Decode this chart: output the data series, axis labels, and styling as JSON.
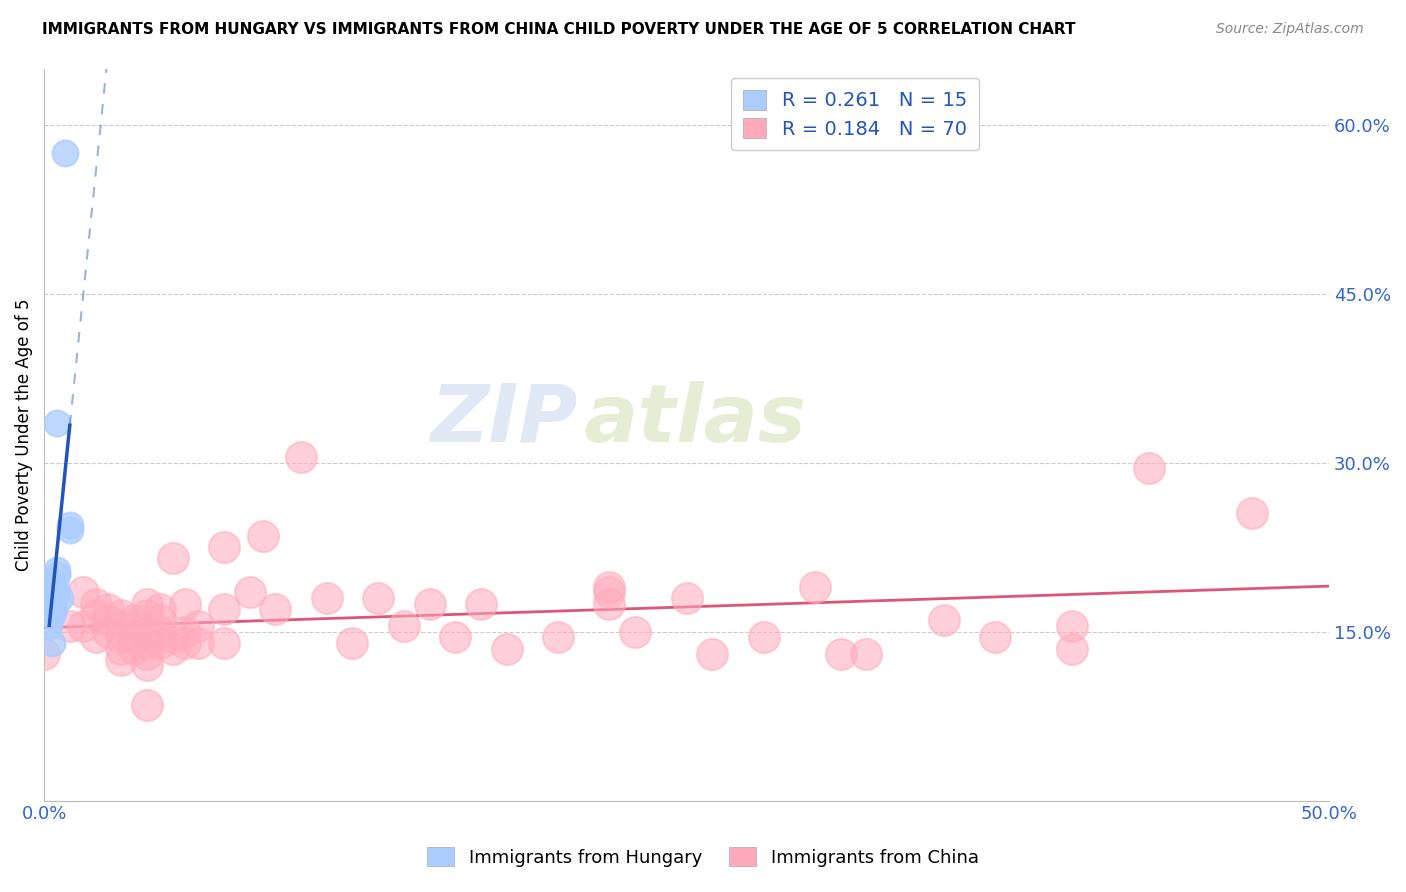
{
  "title": "IMMIGRANTS FROM HUNGARY VS IMMIGRANTS FROM CHINA CHILD POVERTY UNDER THE AGE OF 5 CORRELATION CHART",
  "source": "Source: ZipAtlas.com",
  "ylabel": "Child Poverty Under the Age of 5",
  "xlim": [
    0.0,
    0.5
  ],
  "ylim": [
    0.0,
    0.65
  ],
  "x_ticks": [
    0.0,
    0.1,
    0.2,
    0.3,
    0.4,
    0.5
  ],
  "x_tick_labels": [
    "0.0%",
    "",
    "",
    "",
    "",
    "50.0%"
  ],
  "y_ticks_right": [
    0.15,
    0.3,
    0.45,
    0.6
  ],
  "y_tick_labels_right": [
    "15.0%",
    "30.0%",
    "45.0%",
    "60.0%"
  ],
  "legend_hungary_R": "0.261",
  "legend_hungary_N": "15",
  "legend_china_R": "0.184",
  "legend_china_N": "70",
  "legend_labels": [
    "Immigrants from Hungary",
    "Immigrants from China"
  ],
  "hungary_color": "#aaccff",
  "china_color": "#ffaabb",
  "hungary_line_color": "#2255bb",
  "china_line_color": "#dd5577",
  "grid_color": "#cccccc",
  "watermark_zip": "ZIP",
  "watermark_atlas": "atlas",
  "hungary_points": [
    [
      0.008,
      0.575
    ],
    [
      0.005,
      0.335
    ],
    [
      0.01,
      0.245
    ],
    [
      0.01,
      0.24
    ],
    [
      0.005,
      0.205
    ],
    [
      0.005,
      0.2
    ],
    [
      0.003,
      0.195
    ],
    [
      0.004,
      0.19
    ],
    [
      0.005,
      0.185
    ],
    [
      0.006,
      0.18
    ],
    [
      0.003,
      0.175
    ],
    [
      0.004,
      0.17
    ],
    [
      0.003,
      0.165
    ],
    [
      0.002,
      0.155
    ],
    [
      0.003,
      0.14
    ]
  ],
  "china_points": [
    [
      0.0,
      0.13
    ],
    [
      0.01,
      0.155
    ],
    [
      0.015,
      0.185
    ],
    [
      0.015,
      0.155
    ],
    [
      0.02,
      0.175
    ],
    [
      0.02,
      0.165
    ],
    [
      0.02,
      0.145
    ],
    [
      0.025,
      0.17
    ],
    [
      0.025,
      0.16
    ],
    [
      0.025,
      0.15
    ],
    [
      0.03,
      0.165
    ],
    [
      0.03,
      0.155
    ],
    [
      0.03,
      0.145
    ],
    [
      0.03,
      0.135
    ],
    [
      0.03,
      0.125
    ],
    [
      0.035,
      0.16
    ],
    [
      0.035,
      0.155
    ],
    [
      0.035,
      0.145
    ],
    [
      0.035,
      0.135
    ],
    [
      0.04,
      0.175
    ],
    [
      0.04,
      0.165
    ],
    [
      0.04,
      0.15
    ],
    [
      0.04,
      0.14
    ],
    [
      0.04,
      0.13
    ],
    [
      0.04,
      0.12
    ],
    [
      0.04,
      0.085
    ],
    [
      0.045,
      0.17
    ],
    [
      0.045,
      0.16
    ],
    [
      0.045,
      0.15
    ],
    [
      0.045,
      0.14
    ],
    [
      0.05,
      0.215
    ],
    [
      0.05,
      0.145
    ],
    [
      0.05,
      0.135
    ],
    [
      0.055,
      0.175
    ],
    [
      0.055,
      0.15
    ],
    [
      0.055,
      0.14
    ],
    [
      0.06,
      0.155
    ],
    [
      0.06,
      0.14
    ],
    [
      0.07,
      0.225
    ],
    [
      0.07,
      0.17
    ],
    [
      0.07,
      0.14
    ],
    [
      0.08,
      0.185
    ],
    [
      0.085,
      0.235
    ],
    [
      0.09,
      0.17
    ],
    [
      0.1,
      0.305
    ],
    [
      0.11,
      0.18
    ],
    [
      0.12,
      0.14
    ],
    [
      0.13,
      0.18
    ],
    [
      0.14,
      0.155
    ],
    [
      0.15,
      0.175
    ],
    [
      0.16,
      0.145
    ],
    [
      0.17,
      0.175
    ],
    [
      0.18,
      0.135
    ],
    [
      0.2,
      0.145
    ],
    [
      0.22,
      0.19
    ],
    [
      0.22,
      0.185
    ],
    [
      0.22,
      0.175
    ],
    [
      0.23,
      0.15
    ],
    [
      0.25,
      0.18
    ],
    [
      0.26,
      0.13
    ],
    [
      0.28,
      0.145
    ],
    [
      0.3,
      0.19
    ],
    [
      0.31,
      0.13
    ],
    [
      0.32,
      0.13
    ],
    [
      0.35,
      0.16
    ],
    [
      0.37,
      0.145
    ],
    [
      0.4,
      0.155
    ],
    [
      0.4,
      0.135
    ],
    [
      0.43,
      0.295
    ],
    [
      0.47,
      0.255
    ]
  ],
  "hungary_scatter_size": 350,
  "china_scatter_size": 500
}
